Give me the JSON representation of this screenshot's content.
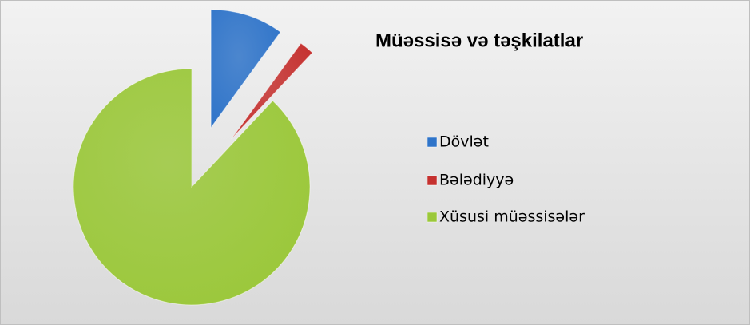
{
  "chart_data": {
    "type": "pie",
    "title": "Müəssisə və təşkilatlar",
    "categories": [
      "Dövlət",
      "Bələdiyyə",
      "Xüsusi müəssisələr"
    ],
    "values": [
      10,
      2,
      88
    ],
    "colors": [
      "#2f74c9",
      "#c5312f",
      "#9bc83a"
    ],
    "legend": "right"
  }
}
